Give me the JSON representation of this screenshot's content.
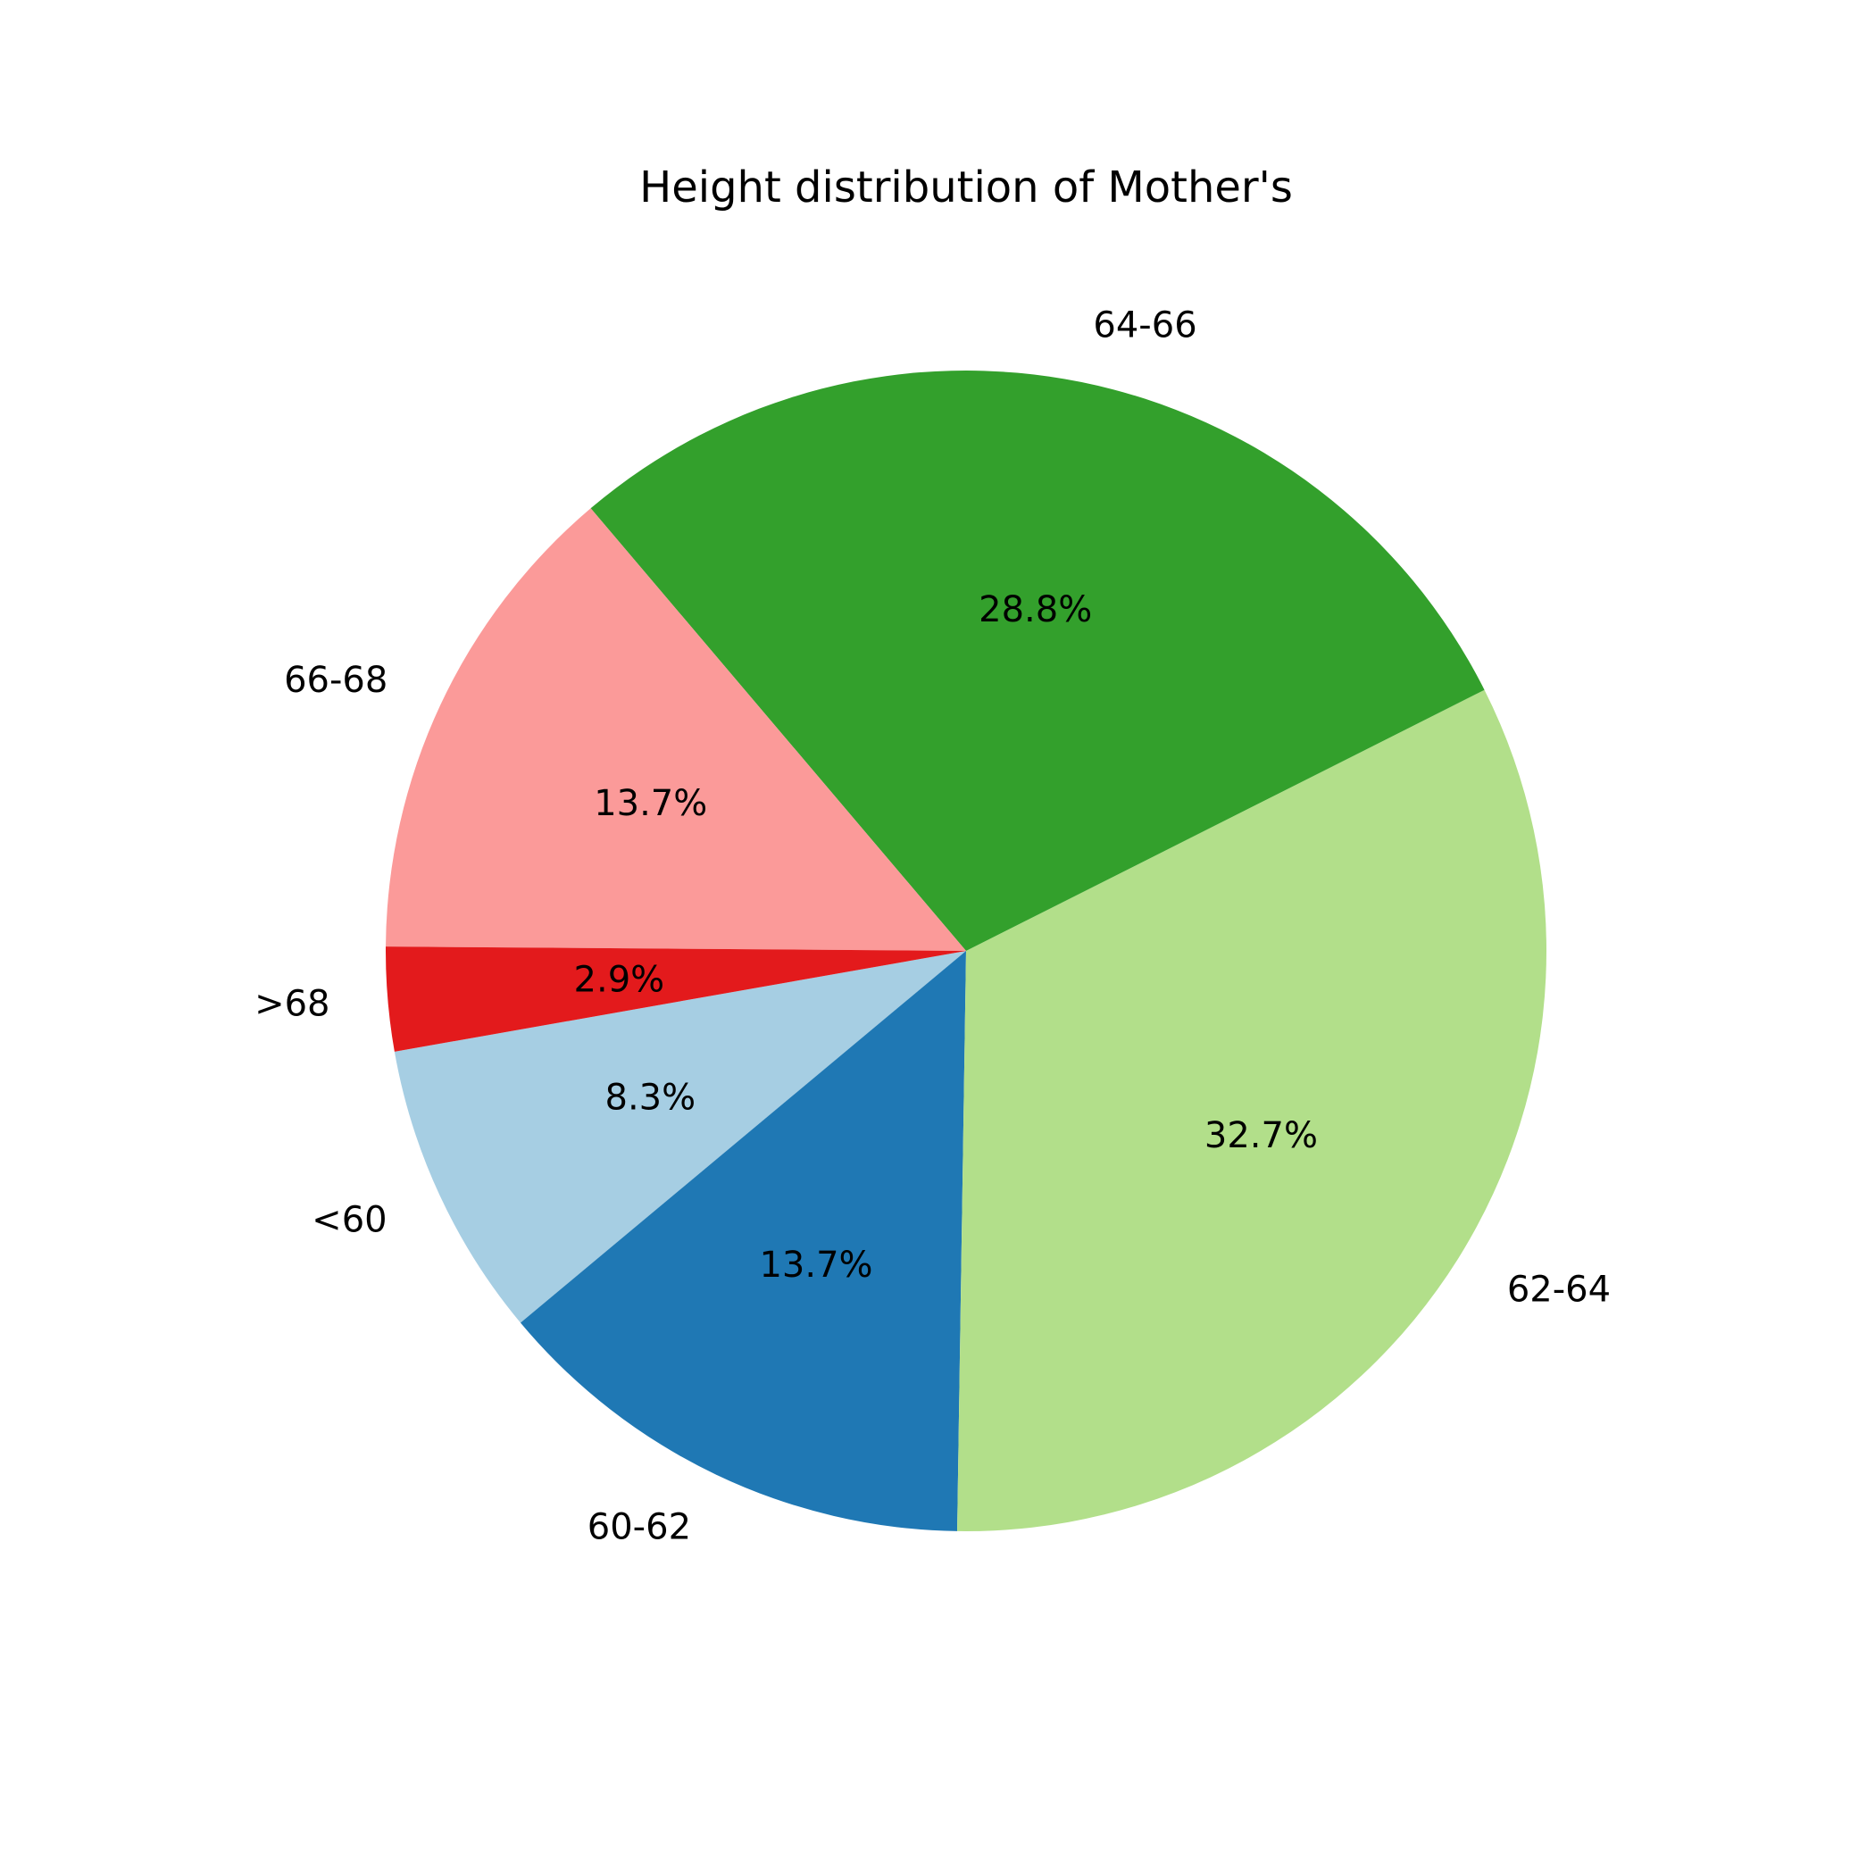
{
  "chart_data": {
    "type": "pie",
    "title": "Height distribution of Mother's",
    "categories": [
      "<60",
      "60-62",
      "62-64",
      "64-66",
      "66-68",
      ">68"
    ],
    "values": [
      8.3,
      13.7,
      32.7,
      28.8,
      13.7,
      2.9
    ],
    "value_labels": [
      "8.3%",
      "13.7%",
      "32.7%",
      "28.8%",
      "13.7%",
      "2.9%"
    ],
    "colors": [
      "#a6cee3",
      "#1f78b4",
      "#b2df8a",
      "#33a02c",
      "#fb9a99",
      "#e31a1c"
    ],
    "legend": "none"
  }
}
